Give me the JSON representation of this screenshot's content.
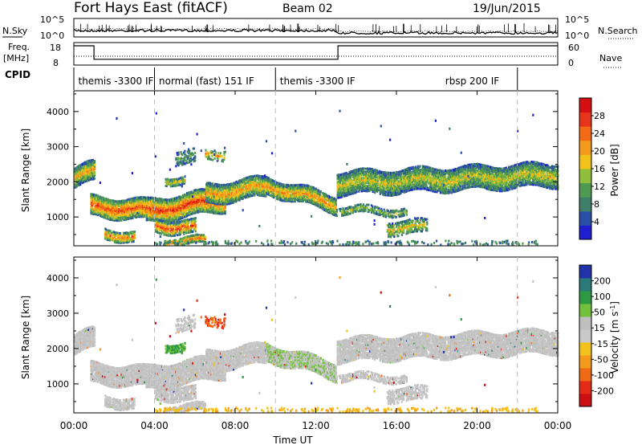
{
  "header": {
    "station": "Fort Hays East (fitACF)",
    "beam": "Beam 02",
    "date": "19/Jun/2015"
  },
  "noise_panel": {
    "left_label": "N.Sky",
    "right_label": "N.Search",
    "left_ticks": [
      "10^5",
      "10^0"
    ],
    "right_ticks": [
      "10^5",
      "10^0"
    ]
  },
  "freq_panel": {
    "left_label_1": "Freq.",
    "left_label_2": "[MHz]",
    "right_label": "Nave",
    "left_ticks": [
      "18",
      "8"
    ],
    "right_ticks": [
      "60",
      "0"
    ]
  },
  "cpid": {
    "label": "CPID",
    "segments": [
      {
        "name": "themis -3300 IF",
        "start_h": 0,
        "end_h": 4
      },
      {
        "name": "normal (fast) 151 IF",
        "start_h": 4,
        "end_h": 10
      },
      {
        "name": "themis -3300 IF",
        "start_h": 10,
        "end_h": 22
      },
      {
        "name": "rbsp 200 IF",
        "start_h": 22,
        "end_h": 24
      }
    ],
    "label_positions_h": [
      0.1,
      4.1,
      10.1,
      18.3
    ]
  },
  "chart_data": [
    {
      "type": "heatmap",
      "panel": "power",
      "ylabel": "Slant Range [km]",
      "ylim": [
        180,
        4590
      ],
      "yticks": [
        1000,
        2000,
        3000,
        4000
      ],
      "colorbar_label": "Power [dB]",
      "colorbar_ticks": [
        "28",
        "24",
        "20",
        "16",
        "12",
        "8",
        "4"
      ],
      "colors": [
        "#1f1fd1",
        "#2a4fa6",
        "#3f7f6a",
        "#4e9a52",
        "#8fbf3a",
        "#f2c21a",
        "#f59a1a",
        "#f26a16",
        "#e8341a",
        "#d60f12"
      ]
    },
    {
      "type": "heatmap",
      "panel": "velocity",
      "ylabel": "Slant Range [km]",
      "ylim": [
        180,
        4590
      ],
      "yticks": [
        1000,
        2000,
        3000,
        4000
      ],
      "colorbar_label": "Velocity [m s^-1]",
      "colorbar_ticks": [
        "200",
        "100",
        "50",
        "15",
        "-15",
        "-50",
        "-100",
        "-200"
      ],
      "colors": [
        "#2233aa",
        "#2a7b78",
        "#2d9a43",
        "#72c13c",
        "#bfbfbf",
        "#c9c9c9",
        "#f2c21a",
        "#f59a1a",
        "#f06a16",
        "#e22a16",
        "#cc0f12"
      ]
    }
  ],
  "xaxis": {
    "label": "Time UT",
    "ticks": [
      "00:00",
      "04:00",
      "08:00",
      "12:00",
      "16:00",
      "20:00",
      "00:00"
    ],
    "tick_hours": [
      0,
      4,
      8,
      12,
      16,
      20,
      24
    ]
  }
}
